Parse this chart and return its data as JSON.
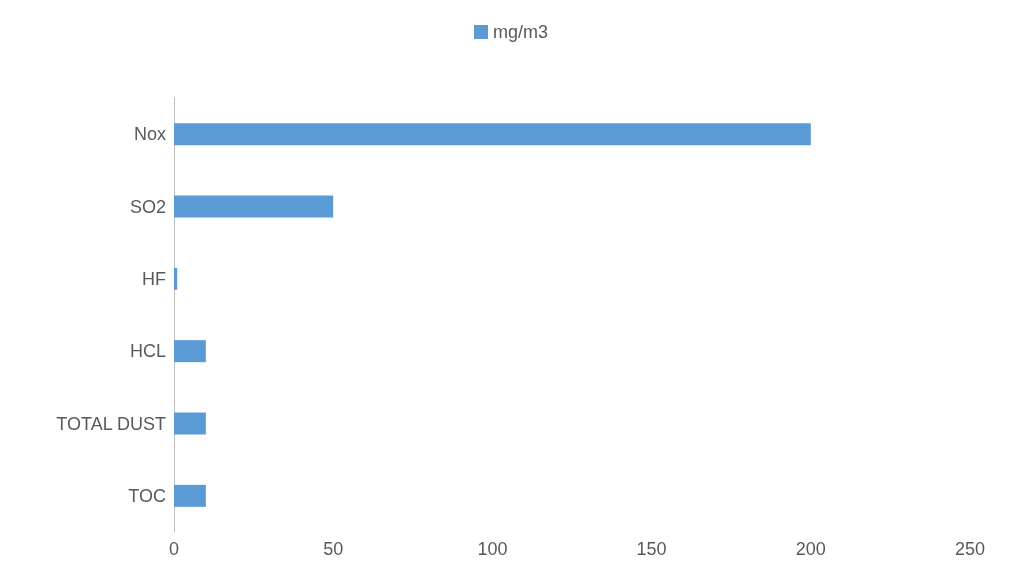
{
  "chart_data": {
    "type": "bar",
    "orientation": "horizontal",
    "categories": [
      "Nox",
      "SO2",
      "HF",
      "HCL",
      "TOTAL DUST",
      "TOC"
    ],
    "series": [
      {
        "name": "mg/m3",
        "color": "#5b9bd5",
        "values": [
          200,
          50,
          1,
          10,
          10,
          10
        ]
      }
    ],
    "xlim": [
      0,
      250
    ],
    "xticks": [
      0,
      50,
      100,
      150,
      200,
      250
    ],
    "grid": false,
    "legend": "top"
  }
}
